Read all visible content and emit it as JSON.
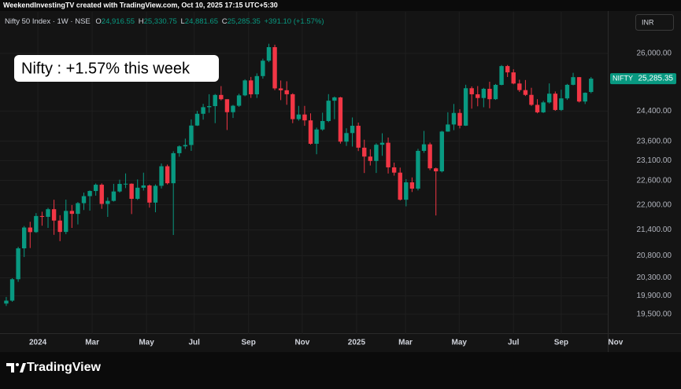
{
  "header": {
    "attribution": "WeekendInvestingTV created with TradingView.com, Oct 10, 2025 17:15 UTC+5:30",
    "symbol": "Nifty 50 Index · 1W · NSE",
    "o_key": "O",
    "o": "24,916.55",
    "h_key": "H",
    "h": "25,330.75",
    "l_key": "L",
    "l": "24,881.65",
    "c_key": "C",
    "c": "25,285.35",
    "change": "+391.10 (+1.57%)",
    "currency": "INR"
  },
  "footer": {
    "brand": "TradingView"
  },
  "chart_data": {
    "type": "candlestick",
    "annotation": "Nifty : +1.57% this week",
    "last_price_tag": {
      "name": "NIFTY",
      "price": "25,285.35"
    },
    "log_scale": true,
    "grid": true,
    "up_color": "#089981",
    "down_color": "#f23645",
    "x": [
      0,
      1,
      2,
      3,
      4,
      5,
      6,
      7,
      8,
      9,
      10,
      11,
      12,
      13,
      14,
      15,
      16,
      17,
      18,
      19,
      20,
      21,
      22,
      23,
      24,
      25,
      26,
      27,
      28,
      29,
      30,
      31,
      32,
      33,
      34,
      35,
      36,
      37,
      38,
      39,
      40,
      41,
      42,
      43,
      44,
      45,
      46,
      47,
      48,
      49,
      50,
      51,
      52,
      53,
      54,
      55,
      56,
      57,
      58,
      59,
      60,
      61,
      62,
      63,
      64,
      65,
      66,
      67,
      68,
      69,
      70,
      71,
      72,
      73,
      74,
      75,
      76,
      77,
      78,
      79,
      80,
      81,
      82,
      83,
      84,
      85,
      86,
      87,
      88,
      89,
      90,
      91,
      92,
      93,
      94,
      95,
      96,
      97,
      98
    ],
    "open": [
      19731,
      19795,
      20268,
      20970,
      21457,
      21349,
      21731,
      21711,
      21895,
      21622,
      21353,
      21854,
      21783,
      22041,
      22213,
      22339,
      22494,
      22023,
      22097,
      22327,
      22514,
      22519,
      22147,
      22420,
      22476,
      22055,
      22467,
      22957,
      22531,
      23290,
      23466,
      23501,
      24011,
      24324,
      24502,
      24531,
      24835,
      24718,
      24367,
      24541,
      24823,
      25236,
      24852,
      25357,
      25791,
      26179,
      25015,
      24964,
      24854,
      24181,
      24305,
      24148,
      23533,
      23907,
      24131,
      24678,
      24768,
      23588,
      23813,
      24005,
      23432,
      23203,
      23092,
      23508,
      23560,
      22929,
      22796,
      22125,
      22553,
      22397,
      23350,
      23519,
      22904,
      22829,
      23852,
      24039,
      24347,
      24008,
      25020,
      24853,
      24751,
      25003,
      24719,
      25112,
      25638,
      25461,
      25150,
      24968,
      24837,
      24565,
      24363,
      24631,
      24870,
      24427,
      24741,
      25114,
      25327,
      24655,
      24916.55
    ],
    "high": [
      19875,
      20291,
      21006,
      21493,
      21593,
      21801,
      21834,
      21928,
      22124,
      21750,
      22127,
      21997,
      22068,
      22298,
      22353,
      22526,
      22527,
      22180,
      22516,
      22619,
      22776,
      22527,
      22626,
      22795,
      22500,
      22503,
      23027,
      23000,
      23340,
      23490,
      23667,
      24174,
      24401,
      24592,
      24854,
      24861,
      25078,
      24718,
      24563,
      24867,
      25268,
      25333,
      25433,
      25849,
      26277,
      26250,
      25234,
      25212,
      24882,
      24537,
      24537,
      24336,
      23956,
      24354,
      24857,
      24792,
      24782,
      23939,
      24226,
      24089,
      23639,
      23391,
      23546,
      23807,
      23695,
      23049,
      22922,
      22633,
      22676,
      23402,
      23869,
      23565,
      22923,
      23872,
      24365,
      24589,
      24448,
      25116,
      25070,
      25079,
      25030,
      25199,
      25137,
      25668,
      25669,
      25548,
      25255,
      25247,
      25032,
      24720,
      24674,
      25153,
      24930,
      24980,
      25139,
      25448,
      25331,
      24905,
      25330.75
    ],
    "low": [
      19680,
      19770,
      20210,
      20770,
      20977,
      21330,
      21500,
      21448,
      21285,
      21137,
      21300,
      21448,
      21530,
      21875,
      21860,
      22224,
      21905,
      21710,
      22080,
      22300,
      22410,
      21778,
      22120,
      22350,
      21933,
      21821,
      22400,
      22500,
      21281,
      23200,
      23400,
      23350,
      24000,
      24168,
      24350,
      24074,
      24686,
      23893,
      24212,
      24510,
      24800,
      24754,
      24753,
      25285,
      25750,
      24966,
      24694,
      24567,
      24074,
      24140,
      24004,
      23510,
      23263,
      23873,
      24100,
      24180,
      23537,
      23478,
      23461,
      23345,
      22786,
      22976,
      22787,
      23223,
      22774,
      22720,
      22105,
      21965,
      22314,
      22353,
      23300,
      22858,
      21744,
      22800,
      23847,
      23889,
      23936,
      24000,
      24462,
      24526,
      24500,
      24473,
      24700,
      25100,
      25331,
      25129,
      24918,
      24806,
      24535,
      24337,
      24345,
      24600,
      24404,
      24400,
      24700,
      25100,
      24629,
      24588,
      24881.65
    ],
    "close": [
      19795,
      20268,
      20970,
      21457,
      21349,
      21731,
      21711,
      21895,
      21622,
      21353,
      21854,
      21783,
      22041,
      22213,
      22339,
      22494,
      22023,
      22097,
      22327,
      22514,
      22519,
      22147,
      22420,
      22476,
      22055,
      22467,
      22957,
      22531,
      23290,
      23466,
      23501,
      24011,
      24324,
      24502,
      24531,
      24835,
      24718,
      24367,
      24541,
      24823,
      25236,
      24852,
      25357,
      25791,
      26179,
      25015,
      24964,
      24854,
      24181,
      24305,
      24148,
      23533,
      23907,
      24131,
      24678,
      24768,
      23588,
      23813,
      24005,
      23432,
      23203,
      23092,
      23508,
      23560,
      22929,
      22796,
      22125,
      22553,
      22397,
      23350,
      23519,
      22904,
      22829,
      23852,
      24039,
      24347,
      24008,
      25020,
      24853,
      24751,
      25003,
      24719,
      25112,
      25638,
      25461,
      25150,
      24968,
      24837,
      24565,
      24363,
      24631,
      24870,
      24427,
      24741,
      25114,
      25327,
      24655,
      24894,
      25285.35
    ],
    "xlim": [
      -1.05,
      100.8
    ],
    "xticks": [
      {
        "value": 5.3,
        "label": "2024"
      },
      {
        "value": 14.4,
        "label": "Mar"
      },
      {
        "value": 23.5,
        "label": "May"
      },
      {
        "value": 31.5,
        "label": "Jul"
      },
      {
        "value": 40.6,
        "label": "Sep"
      },
      {
        "value": 49.6,
        "label": "Nov"
      },
      {
        "value": 58.7,
        "label": "2025"
      },
      {
        "value": 66.9,
        "label": "Mar"
      },
      {
        "value": 75.9,
        "label": "May"
      },
      {
        "value": 85,
        "label": "Jul"
      },
      {
        "value": 93,
        "label": "Sep"
      },
      {
        "value": 102.1,
        "label": "Nov"
      }
    ],
    "ylim": [
      19080,
      27220
    ],
    "yticks": [
      {
        "value": 19500,
        "label": "19,500.00"
      },
      {
        "value": 19900,
        "label": "19,900.00"
      },
      {
        "value": 20300,
        "label": "20,300.00"
      },
      {
        "value": 20800,
        "label": "20,800.00"
      },
      {
        "value": 21400,
        "label": "21,400.00"
      },
      {
        "value": 22000,
        "label": "22,000.00"
      },
      {
        "value": 22600,
        "label": "22,600.00"
      },
      {
        "value": 23100,
        "label": "23,100.00"
      },
      {
        "value": 23600,
        "label": "23,600.00"
      },
      {
        "value": 24400,
        "label": "24,400.00"
      },
      {
        "value": 26000,
        "label": "26,000.00"
      }
    ]
  }
}
